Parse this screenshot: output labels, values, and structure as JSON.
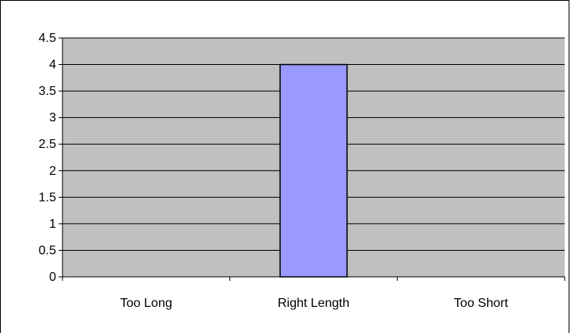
{
  "chart_data": {
    "type": "bar",
    "title": "",
    "xlabel": "",
    "ylabel": "",
    "categories": [
      "Too Long",
      "Right Length",
      "Too Short"
    ],
    "values": [
      0,
      4,
      0
    ],
    "ylim": [
      0,
      4.5
    ],
    "yticks": [
      "0",
      "0.5",
      "1",
      "1.5",
      "2",
      "2.5",
      "3",
      "3.5",
      "4",
      "4.5"
    ],
    "grid": true,
    "legend": "none",
    "colors": {
      "plot_background": "#c0c0c0",
      "bar_fill": "#9999ff",
      "bar_stroke": "#000000",
      "gridline": "#000000"
    }
  }
}
